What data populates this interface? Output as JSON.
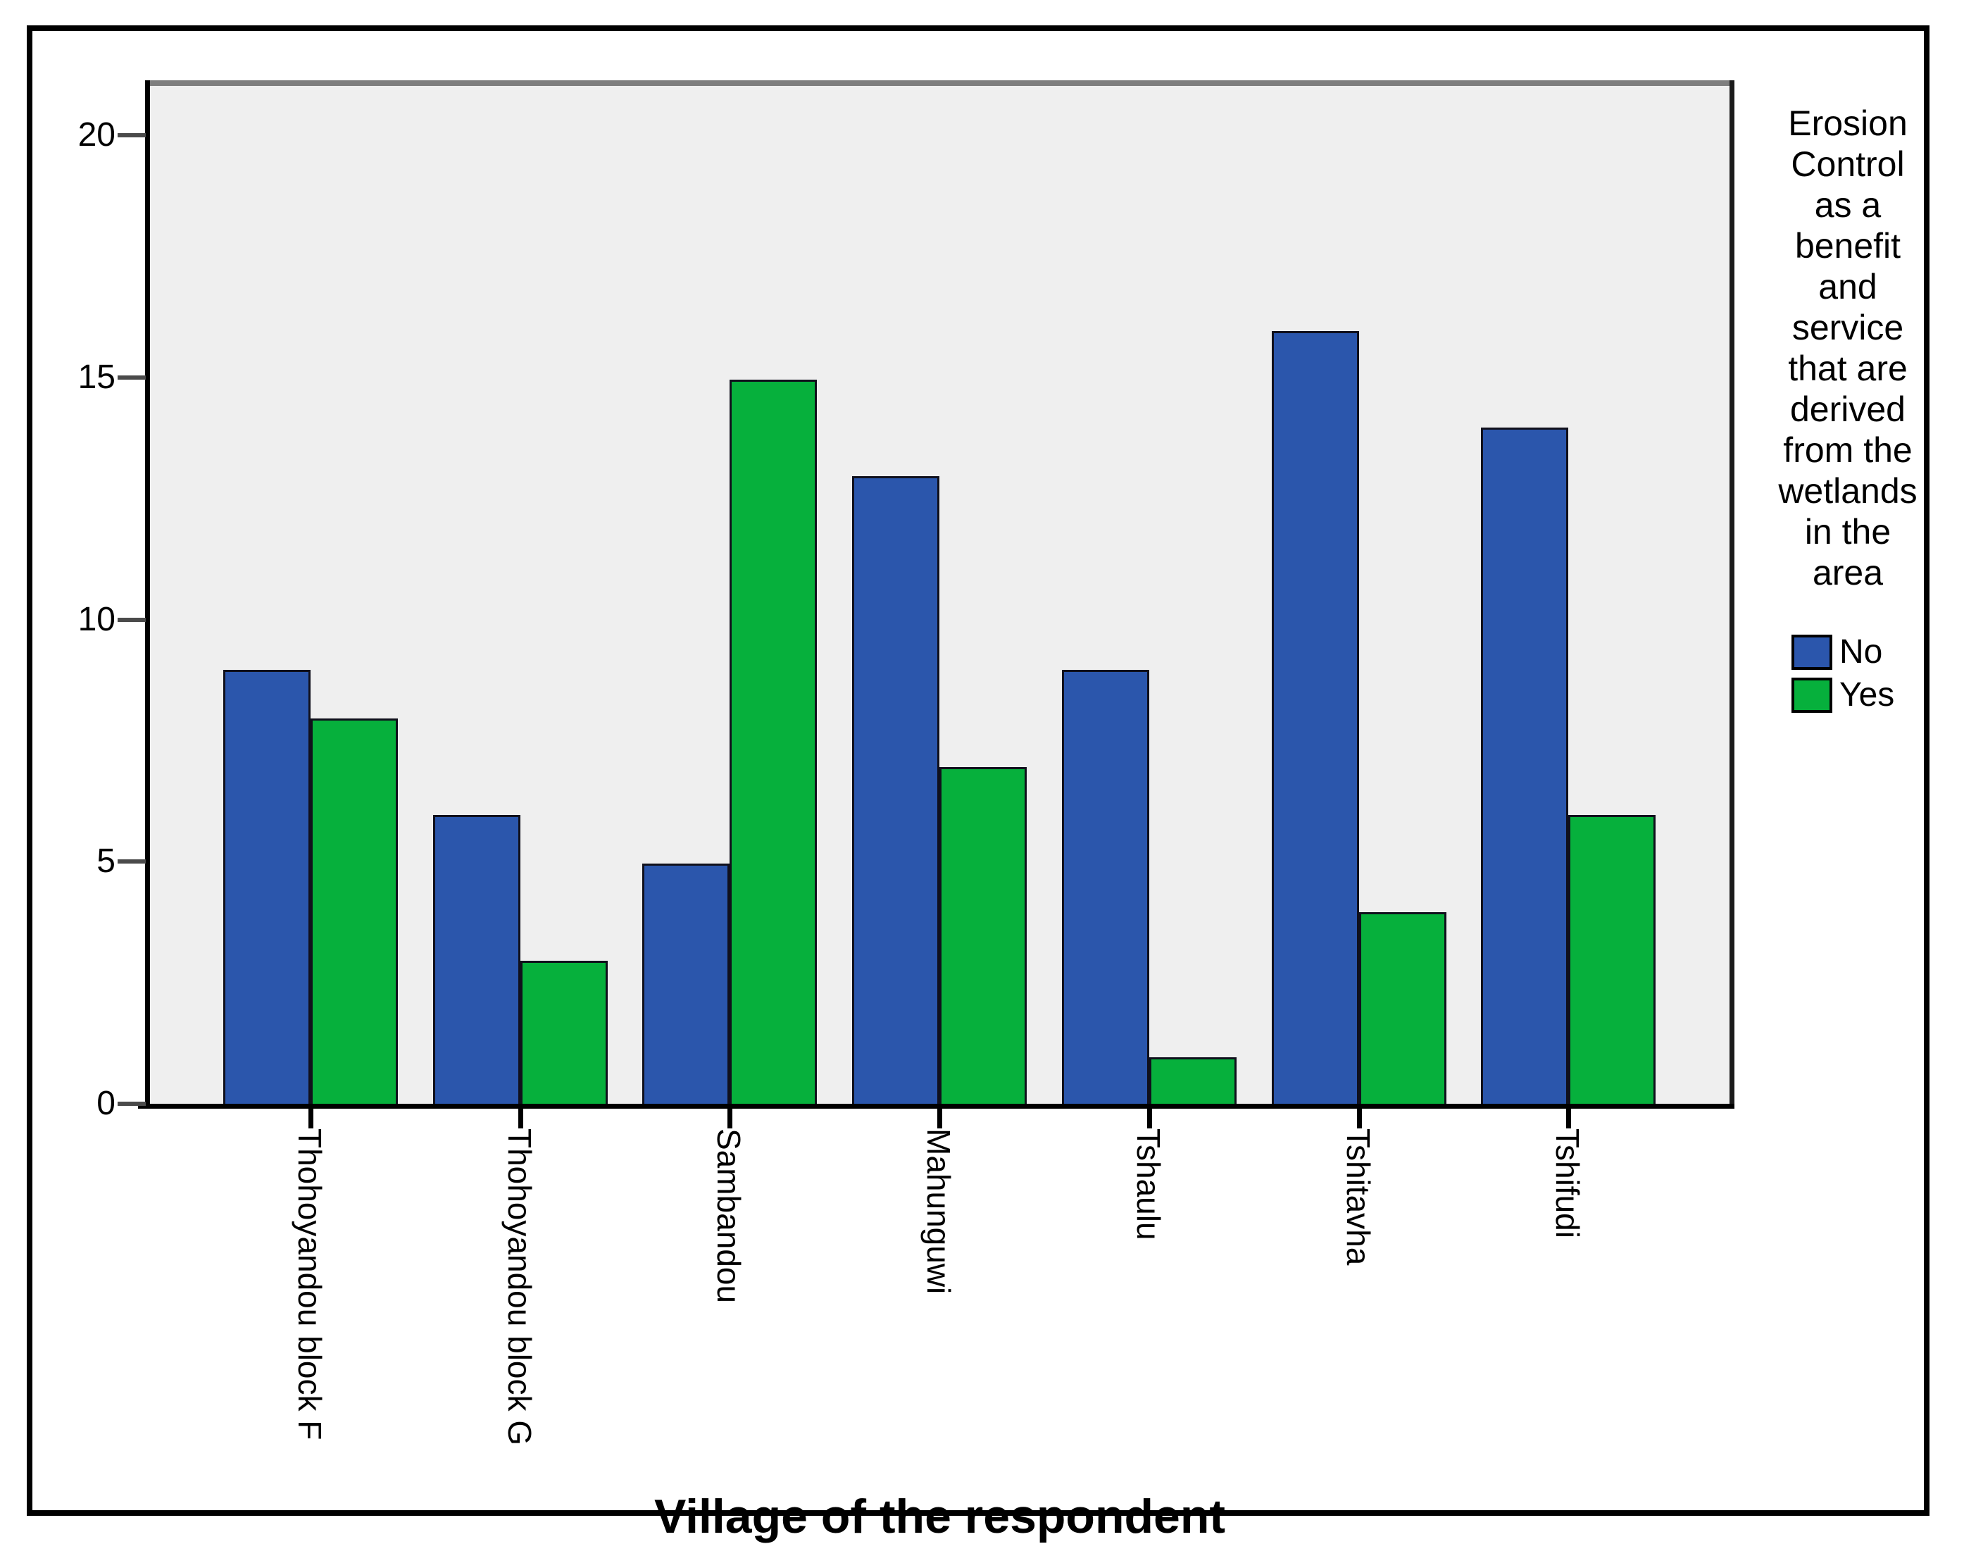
{
  "chart_data": {
    "type": "bar",
    "title": "",
    "xlabel": "Village of the respondent",
    "ylabel": "",
    "categories": [
      "Thohoyandou block F",
      "Thohoyandou block G",
      "Sambandou",
      "Mahunguwi",
      "Tshaulu",
      "Tshitavha",
      "Tshifudi"
    ],
    "series": [
      {
        "name": "No",
        "color": "#2B56AC",
        "values": [
          9,
          6,
          5,
          13,
          9,
          16,
          14
        ]
      },
      {
        "name": "Yes",
        "color": "#06B03C",
        "values": [
          8,
          3,
          15,
          7,
          1,
          4,
          6
        ]
      }
    ],
    "ylim": [
      0,
      20
    ],
    "yticks": [
      0,
      5,
      10,
      15,
      20
    ],
    "grid": false,
    "legend_position": "right",
    "legend_title": "Erosion\nControl\nas a\nbenefit\nand\nservice\nthat are\nderived\nfrom the\nwetlands\nin the\narea",
    "plot_background": "#EFEFEF",
    "bar_orientation": "vertical",
    "x_tick_label_rotation_deg": 90
  }
}
